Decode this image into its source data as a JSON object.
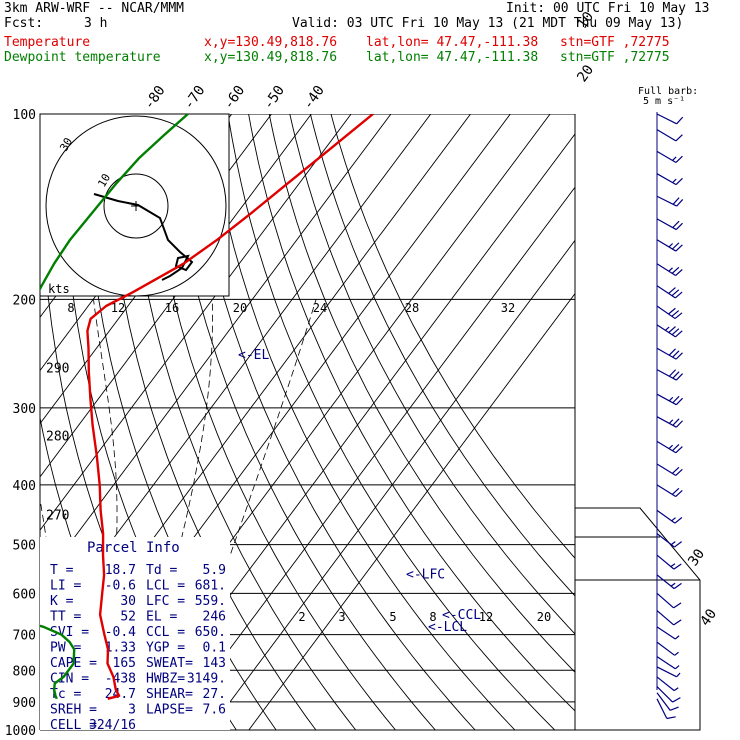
{
  "header": {
    "model": "3km ARW-WRF -- NCAR/MMM",
    "init": "Init: 00 UTC Fri 10 May 13",
    "fcst_label": "Fcst:",
    "fcst_value": "3 h",
    "valid": "Valid: 03 UTC Fri 10 May 13 (21 MDT Thu 09 May 13)",
    "temp_line": {
      "label": "Temperature",
      "xy": "x,y=130.49,818.76",
      "latlon": "lat,lon= 47.47,-111.38",
      "stn": "stn=GTF ,72775"
    },
    "dew_line": {
      "label": "Dewpoint temperature",
      "xy": "x,y=130.49,818.76",
      "latlon": "lat,lon= 47.47,-111.38",
      "stn": "stn=GTF ,72775"
    }
  },
  "colors": {
    "temperature": "#e00000",
    "dewpoint": "#007f00",
    "annotation": "#000080",
    "wind": "#000080",
    "grid": "#000000"
  },
  "wind_key": {
    "title": "Full barb:",
    "value": "5 m s⁻¹"
  },
  "chart_data": {
    "type": "line",
    "chart_kind": "skew-T log-p sounding",
    "y_axis": {
      "quantity": "pressure",
      "scale": "log",
      "reversed": true,
      "ticks": [
        100,
        200,
        300,
        400,
        500,
        600,
        700,
        800,
        900,
        1000
      ],
      "tick_labels": [
        "100",
        "200",
        "300",
        "400",
        "500",
        "600",
        "700",
        "800",
        "900",
        "1000"
      ]
    },
    "isotherm_labels": [
      {
        "t": -80,
        "text": "-80"
      },
      {
        "t": -70,
        "text": "-70"
      },
      {
        "t": -60,
        "text": "-60"
      },
      {
        "t": -50,
        "text": "-50"
      },
      {
        "t": -40,
        "text": "-40"
      },
      {
        "t": -30,
        "text": "-30"
      },
      {
        "t": -20,
        "text": "-20"
      },
      {
        "t": -10,
        "text": "-10"
      },
      {
        "t": 0,
        "text": "0"
      },
      {
        "t": 10,
        "text": "10"
      },
      {
        "t": 20,
        "text": "20"
      },
      {
        "t": 30,
        "text": "30"
      },
      {
        "t": 40,
        "text": "40"
      }
    ],
    "theta_labels": [
      {
        "theta": 270,
        "text": "270"
      },
      {
        "theta": 280,
        "text": "280"
      },
      {
        "theta": 290,
        "text": "290"
      }
    ],
    "mixing_ratio_labels": [
      "2",
      "3",
      "5",
      "8",
      "12",
      "20"
    ],
    "series": [
      {
        "name": "Temperature",
        "color": "#e00000",
        "p": [
          890,
          880,
          860,
          820,
          780,
          740,
          700,
          650,
          600,
          560,
          520,
          480,
          440,
          400,
          360,
          320,
          290,
          262,
          240,
          225,
          215,
          205,
          195,
          175,
          160,
          145,
          130,
          115,
          100
        ],
        "t": [
          18.7,
          21.0,
          19.0,
          16.0,
          12.0,
          9.5,
          5.8,
          1.0,
          -2.5,
          -5.5,
          -9.5,
          -13.5,
          -18.5,
          -23.5,
          -29.5,
          -36.5,
          -42.0,
          -47.5,
          -52.0,
          -55.5,
          -57.0,
          -55.5,
          -51.5,
          -44.0,
          -40.0,
          -36.5,
          -33.0,
          -29.0,
          -24.5
        ]
      },
      {
        "name": "Dewpoint temperature",
        "color": "#007f00",
        "p": [
          890,
          880,
          860,
          840,
          820,
          780,
          740,
          720,
          700,
          680,
          660,
          640,
          620,
          600,
          560,
          520,
          480,
          440,
          400,
          380,
          350,
          300,
          250,
          210,
          190,
          175,
          160,
          145,
          130,
          118,
          108,
          100
        ],
        "t": [
          5.9,
          5.0,
          3.5,
          2.5,
          3.5,
          3.5,
          1.0,
          -1.5,
          -5.0,
          -11.0,
          -20.0,
          -26.0,
          -31.0,
          -33.5,
          -36.0,
          -38.5,
          -41.5,
          -45.0,
          -52.0,
          -54.0,
          -57.5,
          -62.5,
          -69.0,
          -74.0,
          -75.5,
          -76.5,
          -77.0,
          -76.5,
          -76.0,
          -75.0,
          -73.0,
          -71.0
        ]
      }
    ],
    "annotations": [
      {
        "text": "<-EL",
        "p": 246
      },
      {
        "text": "<-LFC",
        "p": 559
      },
      {
        "text": "<-CCL",
        "p": 650
      },
      {
        "text": "<-LCL",
        "p": 681
      }
    ],
    "wind_barbs_m_s": [
      {
        "p": 890,
        "u": -2.5,
        "v": -5.0
      },
      {
        "p": 870,
        "u": -3.0,
        "v": -4.0
      },
      {
        "p": 850,
        "u": -3.0,
        "v": -3.0
      },
      {
        "p": 820,
        "u": -2.5,
        "v": -2.0
      },
      {
        "p": 790,
        "u": -2.0,
        "v": -1.0
      },
      {
        "p": 760,
        "u": -1.5,
        "v": -1.0
      },
      {
        "p": 720,
        "u": -2.0,
        "v": -1.5
      },
      {
        "p": 680,
        "u": -3.0,
        "v": -2.0
      },
      {
        "p": 640,
        "u": -3.5,
        "v": -3.0
      },
      {
        "p": 600,
        "u": -4.0,
        "v": -3.5
      },
      {
        "p": 560,
        "u": -5.0,
        "v": -4.0
      },
      {
        "p": 520,
        "u": -6.0,
        "v": -5.0
      },
      {
        "p": 480,
        "u": -6.5,
        "v": -5.0
      },
      {
        "p": 440,
        "u": -7.0,
        "v": -5.0
      },
      {
        "p": 400,
        "u": -8.0,
        "v": -5.0
      },
      {
        "p": 370,
        "u": -9.0,
        "v": -5.5
      },
      {
        "p": 340,
        "u": -10.0,
        "v": -6.0
      },
      {
        "p": 310,
        "u": -11.0,
        "v": -6.0
      },
      {
        "p": 285,
        "u": -12.0,
        "v": -6.5
      },
      {
        "p": 260,
        "u": -13.0,
        "v": -7.0
      },
      {
        "p": 240,
        "u": -14.0,
        "v": -8.0
      },
      {
        "p": 220,
        "u": -14.0,
        "v": -9.0
      },
      {
        "p": 205,
        "u": -13.0,
        "v": -9.0
      },
      {
        "p": 190,
        "u": -12.0,
        "v": -8.0
      },
      {
        "p": 175,
        "u": -11.0,
        "v": -7.0
      },
      {
        "p": 160,
        "u": -10.0,
        "v": -6.0
      },
      {
        "p": 148,
        "u": -9.0,
        "v": -5.0
      },
      {
        "p": 136,
        "u": -8.0,
        "v": -4.0
      },
      {
        "p": 125,
        "u": -7.0,
        "v": -4.0
      },
      {
        "p": 115,
        "u": -6.0,
        "v": -3.5
      },
      {
        "p": 106,
        "u": -5.0,
        "v": -3.0
      },
      {
        "p": 100,
        "u": -4.0,
        "v": -2.0
      }
    ],
    "hodograph": {
      "speed_labels": [
        "kts",
        "8",
        "12",
        "16",
        "20",
        "24",
        "28",
        "32"
      ],
      "ring_labels": [
        "10",
        "30"
      ],
      "path_knots": [
        [
          -2,
          4
        ],
        [
          0,
          4.5
        ],
        [
          1,
          5.5
        ],
        [
          2,
          5
        ],
        [
          3,
          5.5
        ],
        [
          1.5,
          6
        ],
        [
          0,
          4.5
        ],
        [
          -1,
          1.5
        ],
        [
          -3,
          0
        ],
        [
          -5,
          -3
        ],
        [
          -7,
          -6
        ],
        [
          -9,
          -7
        ],
        [
          -11,
          -8
        ],
        [
          -13,
          -9
        ],
        [
          -16,
          -8
        ]
      ]
    },
    "parcel_info": {
      "title": "Parcel Info",
      "rows": [
        [
          "T  =",
          "18.7",
          "Td =",
          "5.9"
        ],
        [
          "LI =",
          "-0.6",
          "LCL =",
          "681."
        ],
        [
          "K  =",
          "30",
          "LFC =",
          "559."
        ],
        [
          "TT =",
          "52",
          "EL =",
          "246"
        ],
        [
          "SVI =",
          "-0.4",
          "CCL =",
          "650."
        ],
        [
          "PW =",
          "1.33",
          "YGP =",
          "0.1"
        ],
        [
          "CAPE =",
          "165",
          "SWEAT=",
          "143"
        ],
        [
          "CIN =",
          "-438",
          "HWBZ=",
          "3149."
        ],
        [
          "Tc =",
          "24.7",
          "SHEAR=",
          "27."
        ],
        [
          "SREH =",
          "3",
          "LAPSE=",
          "7.6"
        ],
        [
          "CELL =",
          "324/16",
          "",
          ""
        ]
      ]
    }
  }
}
